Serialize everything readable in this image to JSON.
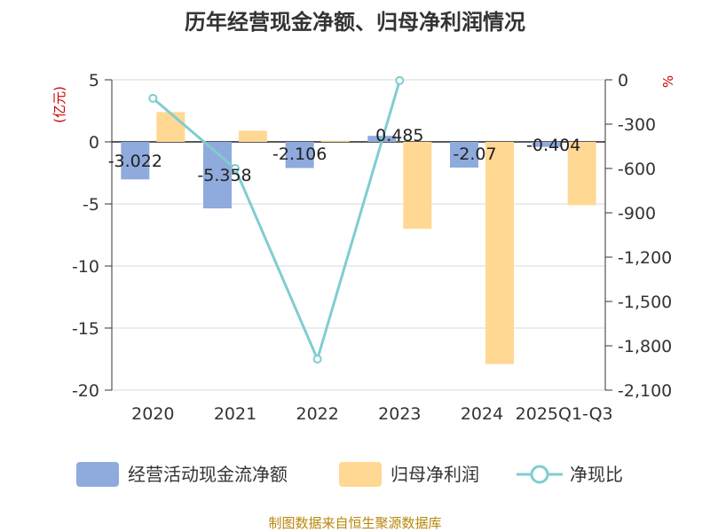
{
  "title": "历年经营现金净额、归母净利润情况",
  "source": "制图数据来自恒生聚源数据库",
  "chart_data": {
    "type": "bar",
    "categories": [
      "2020",
      "2021",
      "2022",
      "2023",
      "2024",
      "2025Q1-Q3"
    ],
    "left_axis": {
      "unit": "(亿元)",
      "ticks": [
        "5",
        "0",
        "-5",
        "-10",
        "-15",
        "-20"
      ],
      "ylim": [
        -20,
        5
      ]
    },
    "right_axis": {
      "unit": "%",
      "ticks": [
        "0",
        "-300",
        "-600",
        "-900",
        "-1,200",
        "-1,500",
        "-1,800",
        "-2,100"
      ],
      "ylim": [
        -2100,
        0
      ]
    },
    "series": [
      {
        "name": "经营活动现金流净额",
        "kind": "bar",
        "axis": "left",
        "color": "#8faadc",
        "values": [
          -3.022,
          -5.358,
          -2.106,
          0.485,
          -2.07,
          -0.404
        ],
        "labels": [
          "-3.022",
          "-5.358",
          "-2.106",
          "0.485",
          "-2.07",
          "-0.404"
        ]
      },
      {
        "name": "归母净利润",
        "kind": "bar",
        "axis": "left",
        "color": "#ffd894",
        "values": [
          2.4,
          0.9,
          0.1,
          -7.0,
          -17.9,
          -5.1
        ]
      },
      {
        "name": "净现比",
        "kind": "line",
        "axis": "right",
        "color": "#7fcdd1",
        "values": [
          -125,
          -600,
          -1890,
          -5,
          null,
          null
        ]
      }
    ],
    "grid": true,
    "legend": "bottom"
  }
}
